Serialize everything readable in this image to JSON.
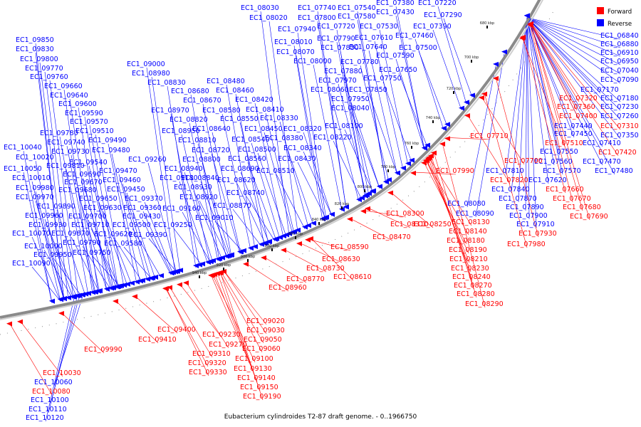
{
  "caption": "Eubacterium cylindroides T2-87 draft genome. - 0..1966750",
  "legend": [
    {
      "label": "Forward",
      "color": "#ff0000"
    },
    {
      "label": "Reverse",
      "color": "#0000ff"
    }
  ],
  "colors": {
    "forward": "#ff0000",
    "reverse": "#0000ff",
    "backbone": "#999999"
  },
  "ticks": [
    "680 kbp",
    "700 kbp",
    "720 kbp",
    "740 kbp",
    "760 kbp",
    "780 kbp",
    "800 kbp",
    "820 kbp",
    "840 kbp",
    "860 kbp",
    "880 kbp",
    "900 kbp",
    "920 kbp",
    "940 kbp"
  ],
  "reverse_genes": [
    "EC1_07220",
    "EC1_07290",
    "EC1_07380",
    "EC1_07430",
    "EC1_07540",
    "EC1_07580",
    "EC1_07740",
    "EC1_07800",
    "EC1_07940",
    "EC1_08030",
    "EC1_08020",
    "EC1_07390",
    "EC1_07460",
    "EC1_07530",
    "EC1_07720",
    "EC1_07610",
    "EC1_07500",
    "EC1_07590",
    "EC1_07640",
    "EC1_07830",
    "EC1_07790",
    "EC1_08010",
    "EC1_08070",
    "EC1_08000",
    "EC1_07780",
    "EC1_07650",
    "EC1_07880",
    "EC1_07750",
    "EC1_07970",
    "EC1_07850",
    "EC1_08060",
    "EC1_07950",
    "EC1_08040",
    "EC1_06840",
    "EC1_06880",
    "EC1_06910",
    "EC1_06950",
    "EC1_07040",
    "EC1_07090",
    "EC1_07170",
    "EC1_07180",
    "EC1_07230",
    "EC1_07260",
    "EC1_07350",
    "EC1_07410",
    "EC1_07470",
    "EC1_07480",
    "EC1_07440",
    "EC1_07450",
    "EC1_07550",
    "EC1_07560",
    "EC1_07570",
    "EC1_07620",
    "EC1_07810",
    "EC1_07840",
    "EC1_07870",
    "EC1_07890",
    "EC1_07900",
    "EC1_07910",
    "EC1_08080",
    "EC1_08090",
    "EC1_08480",
    "EC1_08460",
    "EC1_08420",
    "EC1_08410",
    "EC1_08330",
    "EC1_08320",
    "EC1_08340",
    "EC1_08380",
    "EC1_08430",
    "EC1_08450",
    "EC1_08540",
    "EC1_08500",
    "EC1_08560",
    "EC1_08510",
    "EC1_08100",
    "EC1_08220",
    "EC1_08550",
    "EC1_08580",
    "EC1_08640",
    "EC1_08670",
    "EC1_08680",
    "EC1_08690",
    "EC1_08620",
    "EC1_08740",
    "EC1_08720",
    "EC1_08800",
    "EC1_08810",
    "EC1_08820",
    "EC1_08830",
    "EC1_08840",
    "EC1_08870",
    "EC1_08920",
    "EC1_08930",
    "EC1_08940",
    "EC1_08950",
    "EC1_08970",
    "EC1_08980",
    "EC1_09000",
    "EC1_09010",
    "EC1_09160",
    "EC1_09180",
    "EC1_09250",
    "EC1_09260",
    "EC1_09850",
    "EC1_09830",
    "EC1_09800",
    "EC1_09770",
    "EC1_09760",
    "EC1_09660",
    "EC1_09640",
    "EC1_09600",
    "EC1_09590",
    "EC1_09570",
    "EC1_09510",
    "EC1_09490",
    "EC1_09480",
    "EC1_09780",
    "EC1_09740",
    "EC1_09730",
    "EC1_09540",
    "EC1_09470",
    "EC1_09460",
    "EC1_09450",
    "EC1_09370",
    "EC1_09360",
    "EC1_09430",
    "EC1_09390",
    "EC1_09500",
    "EC1_09580",
    "EC1_09620",
    "EC1_09630",
    "EC1_09650",
    "EC1_09670",
    "EC1_09680",
    "EC1_09690",
    "EC1_09700",
    "EC1_09710",
    "EC1_09750",
    "EC1_09790",
    "EC1_09810",
    "EC1_09870",
    "EC1_09890",
    "EC1_09930",
    "EC1_09950",
    "EC1_09960",
    "EC1_09970",
    "EC1_09980",
    "EC1_10000",
    "EC1_10010",
    "EC1_10020",
    "EC1_10040",
    "EC1_10050",
    "EC1_10070",
    "EC1_10090",
    "EC1_10060",
    "EC1_10100",
    "EC1_10110",
    "EC1_10120"
  ],
  "forward_genes": [
    "EC1_07320",
    "EC1_07360",
    "EC1_07400",
    "EC1_07310",
    "EC1_07510",
    "EC1_07420",
    "EC1_07710",
    "EC1_07700",
    "EC1_07990",
    "EC1_07820",
    "EC1_07660",
    "EC1_07670",
    "EC1_07680",
    "EC1_07690",
    "EC1_07930",
    "EC1_07980",
    "EC1_08130",
    "EC1_08140",
    "EC1_08180",
    "EC1_08190",
    "EC1_08210",
    "EC1_08230",
    "EC1_08240",
    "EC1_08270",
    "EC1_08280",
    "EC1_08290",
    "EC1_08300",
    "EC1_08310",
    "EC1_08250",
    "EC1_08470",
    "EC1_08590",
    "EC1_08630",
    "EC1_08730",
    "EC1_08770",
    "EC1_08610",
    "EC1_08960",
    "EC1_09020",
    "EC1_09030",
    "EC1_09050",
    "EC1_09060",
    "EC1_09100",
    "EC1_09130",
    "EC1_09140",
    "EC1_09150",
    "EC1_09190",
    "EC1_09230",
    "EC1_09270",
    "EC1_09310",
    "EC1_09320",
    "EC1_09330",
    "EC1_09400",
    "EC1_09410",
    "EC1_09990",
    "EC1_10030",
    "EC1_10080"
  ]
}
